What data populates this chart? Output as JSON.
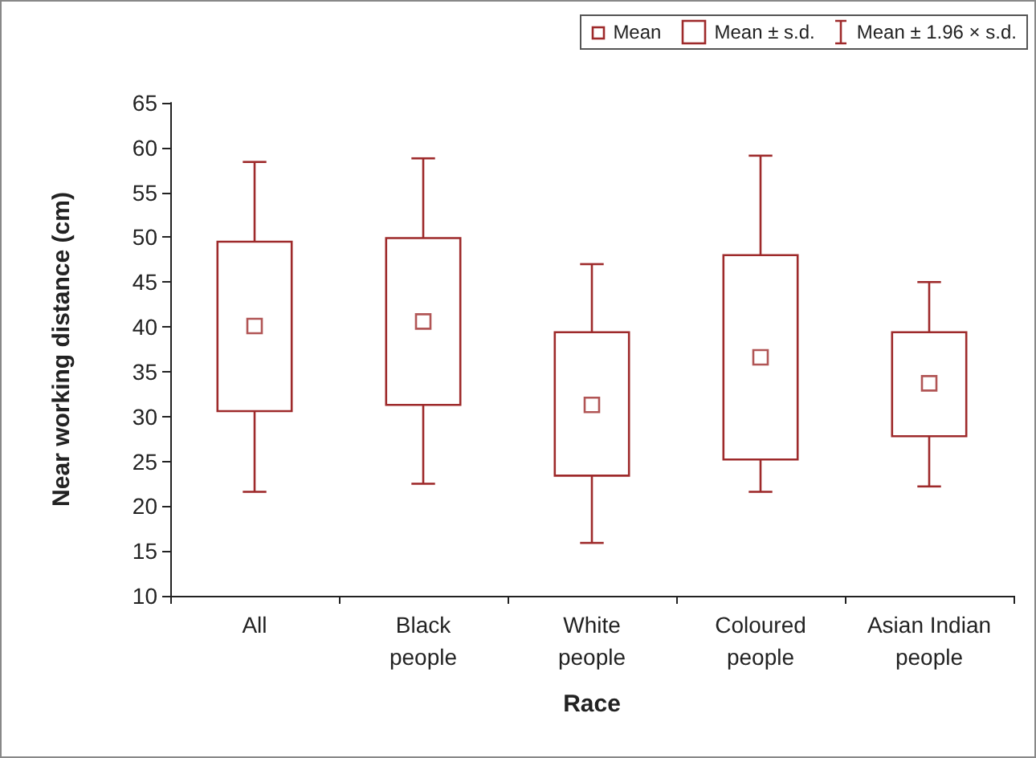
{
  "chart_data": {
    "type": "box",
    "xlabel": "Race",
    "ylabel": "Near working distance (cm)",
    "categories": [
      "All",
      "Black people",
      "White people",
      "Coloured people",
      "Asian Indian people"
    ],
    "ylim": [
      10,
      65
    ],
    "yticks": [
      10,
      15,
      20,
      25,
      30,
      35,
      40,
      45,
      50,
      55,
      60,
      65
    ],
    "grid": false,
    "marker": "square",
    "annotations": [
      "Mean",
      "Mean ± s.d.",
      "Mean ± 1.96 × s.d."
    ],
    "series": [
      {
        "color": "#9e2a2b",
        "boxes": [
          {
            "low": 21.6,
            "q1": 30.6,
            "q3": 49.5,
            "high": 58.4,
            "mean": 40.1
          },
          {
            "low": 22.5,
            "q1": 31.3,
            "q3": 49.9,
            "high": 58.8,
            "mean": 40.6
          },
          {
            "low": 15.9,
            "q1": 23.4,
            "q3": 39.4,
            "high": 47.0,
            "mean": 31.3
          },
          {
            "low": 21.6,
            "q1": 25.2,
            "q3": 48.0,
            "high": 59.1,
            "mean": 36.6
          },
          {
            "low": 22.2,
            "q1": 27.8,
            "q3": 39.4,
            "high": 45.0,
            "mean": 33.7
          }
        ]
      }
    ]
  }
}
